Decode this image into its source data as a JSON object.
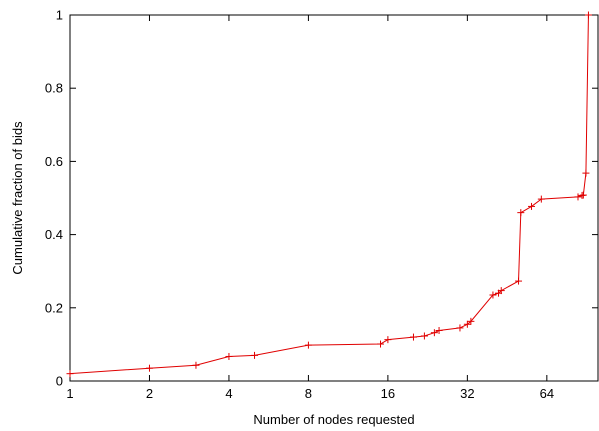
{
  "chart_data": {
    "type": "line",
    "xlabel": "Number of nodes requested",
    "ylabel": "Cumulative fraction of bids",
    "xscale": "log2",
    "xlim": [
      1,
      100
    ],
    "ylim": [
      0,
      1
    ],
    "x_ticks": [
      1,
      2,
      4,
      8,
      16,
      32,
      64
    ],
    "x_tick_labels": [
      "1",
      "2",
      "4",
      "8",
      "16",
      "32",
      "64"
    ],
    "y_ticks": [
      0,
      0.2,
      0.4,
      0.6,
      0.8,
      1
    ],
    "y_tick_labels": [
      "0",
      "0.2",
      "0.4",
      "0.6",
      "0.8",
      "1"
    ],
    "grid": false,
    "legend": "none",
    "series": [
      {
        "color": "#e00000",
        "marker": "plus",
        "x": [
          1,
          2,
          3,
          4,
          5,
          8,
          15,
          16,
          20,
          22,
          24,
          25,
          30,
          32,
          33,
          40,
          42,
          43,
          50,
          51,
          56,
          61,
          84,
          87,
          88,
          90,
          92
        ],
        "y": [
          0.02,
          0.035,
          0.043,
          0.067,
          0.07,
          0.098,
          0.101,
          0.113,
          0.12,
          0.123,
          0.132,
          0.138,
          0.145,
          0.155,
          0.163,
          0.235,
          0.24,
          0.247,
          0.273,
          0.46,
          0.477,
          0.497,
          0.503,
          0.507,
          0.508,
          0.568,
          1.0
        ]
      }
    ]
  }
}
